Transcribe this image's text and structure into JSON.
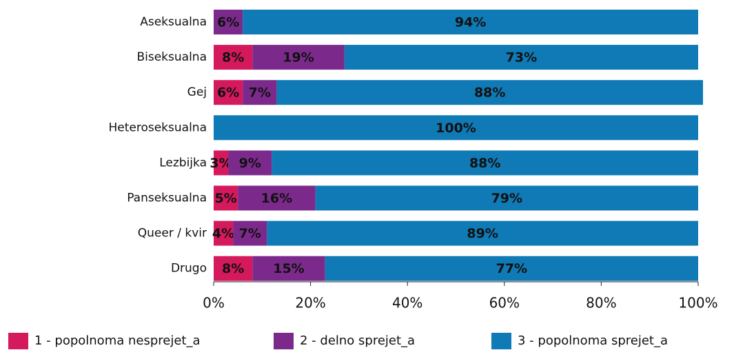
{
  "chart_data": {
    "type": "stacked_barh",
    "categories": [
      "Aseksualna",
      "Biseksualna",
      "Gej",
      "Heteroseksualna",
      "Lezbijka",
      "Panseksualna",
      "Queer / kvir",
      "Drugo"
    ],
    "series": [
      {
        "name": "1 - popolnoma nesprejet_a",
        "color": "#d4195c",
        "values": [
          0,
          8,
          6,
          0,
          3,
          5,
          4,
          8
        ]
      },
      {
        "name": "2 - delno sprejet_a",
        "color": "#7b2a8c",
        "values": [
          6,
          19,
          7,
          0,
          9,
          16,
          7,
          15
        ]
      },
      {
        "name": "3 - popolnoma sprejet_a",
        "color": "#0f7ab5",
        "values": [
          94,
          73,
          88,
          100,
          88,
          79,
          89,
          77
        ]
      }
    ],
    "value_labels": [
      [
        null,
        "8%",
        "6%",
        null,
        "3%",
        "5%",
        "4%",
        "8%"
      ],
      [
        "6%",
        "19%",
        "7%",
        null,
        "9%",
        "16%",
        "7%",
        "15%"
      ],
      [
        "94%",
        "73%",
        "88%",
        "100%",
        "88%",
        "79%",
        "89%",
        "77%"
      ]
    ],
    "xlim": [
      0,
      100
    ],
    "xticks": [
      {
        "value": 0,
        "label": "0%"
      },
      {
        "value": 20,
        "label": "20%"
      },
      {
        "value": 40,
        "label": "40%"
      },
      {
        "value": 60,
        "label": "60%"
      },
      {
        "value": 80,
        "label": "80%"
      },
      {
        "value": 100,
        "label": "100%"
      }
    ],
    "legend": "bottom"
  }
}
